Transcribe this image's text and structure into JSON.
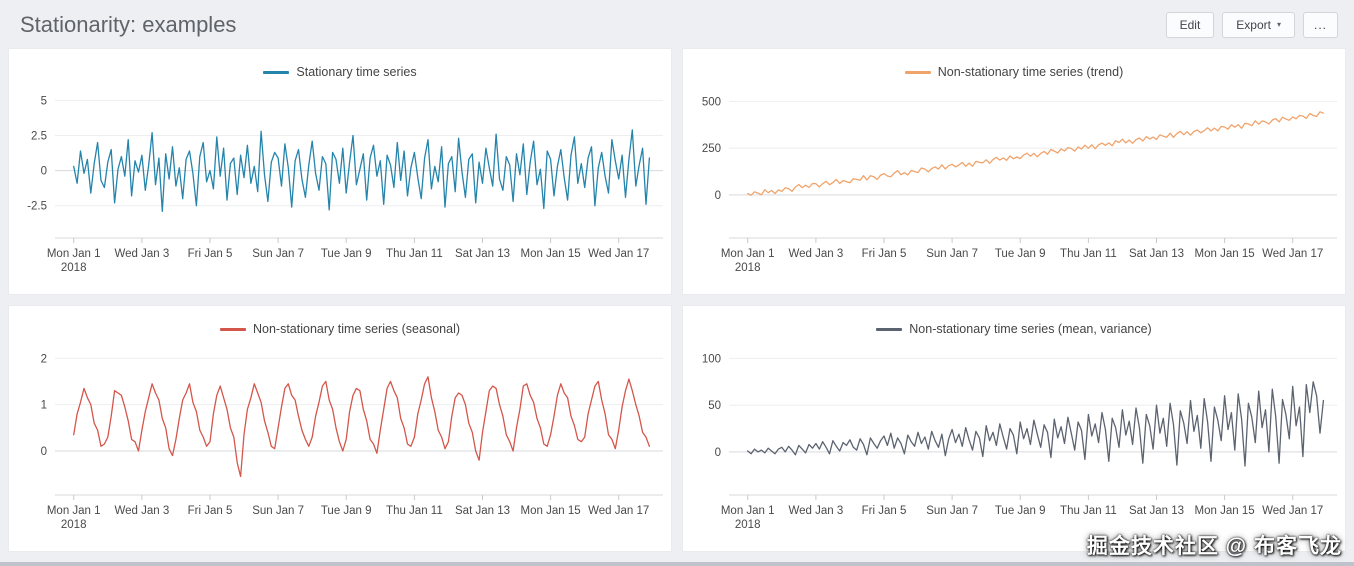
{
  "header": {
    "title": "Stationarity: examples",
    "buttons": {
      "edit": "Edit",
      "export": "Export",
      "more": "..."
    }
  },
  "icons": {
    "chevron_down": "▾"
  },
  "watermark": "掘金技术社区 @ 布客飞龙",
  "x_axis": {
    "day_range": [
      -0.55,
      17.3
    ],
    "points_per_day": 10,
    "ticks": [
      {
        "day": 0,
        "label": "Mon Jan 1",
        "sub": "2018"
      },
      {
        "day": 2,
        "label": "Wed Jan 3"
      },
      {
        "day": 4,
        "label": "Fri Jan 5"
      },
      {
        "day": 6,
        "label": "Sun Jan 7"
      },
      {
        "day": 8,
        "label": "Tue Jan 9"
      },
      {
        "day": 10,
        "label": "Thu Jan 11"
      },
      {
        "day": 12,
        "label": "Sat Jan 13"
      },
      {
        "day": 14,
        "label": "Mon Jan 15"
      },
      {
        "day": 16,
        "label": "Wed Jan 17"
      }
    ]
  },
  "chart_data": [
    {
      "type": "line",
      "title": "Stationary time series",
      "color": "#2484ab",
      "legend_position": "top-center",
      "grid": true,
      "xlabel": "",
      "ylabel": "",
      "y_ticks": [
        5,
        2.5,
        0,
        -2.5
      ],
      "ylim": [
        -4.8,
        5.6
      ],
      "values": [
        0.3,
        -0.9,
        1.4,
        -0.2,
        0.8,
        -1.6,
        0.5,
        2.0,
        -0.7,
        -1.2,
        0.6,
        1.5,
        -2.3,
        0.1,
        1.0,
        -0.4,
        2.2,
        -1.8,
        0.7,
        -0.1,
        1.1,
        -1.4,
        0.4,
        2.7,
        -1.0,
        0.9,
        -2.9,
        1.2,
        -0.6,
        1.7,
        -1.1,
        0.2,
        -2.0,
        0.8,
        1.4,
        -0.2,
        -2.5,
        1.0,
        2.0,
        -0.8,
        0.0,
        -1.3,
        2.4,
        -0.4,
        1.6,
        -2.1,
        0.5,
        0.9,
        -1.7,
        1.1,
        -0.5,
        1.8,
        -0.9,
        0.3,
        -1.5,
        2.8,
        -0.3,
        -2.2,
        0.6,
        1.3,
        0.9,
        -1.1,
        1.9,
        0.2,
        -2.6,
        0.7,
        1.5,
        -0.6,
        -1.9,
        0.4,
        2.1,
        -0.2,
        -1.4,
        1.0,
        0.5,
        -2.8,
        1.3,
        0.8,
        -0.9,
        1.6,
        -1.6,
        0.6,
        2.5,
        -1.0,
        0.1,
        1.2,
        -2.1,
        0.9,
        1.8,
        -0.4,
        0.7,
        -2.4,
        1.1,
        0.4,
        -1.2,
        2.0,
        -0.7,
        1.4,
        -1.8,
        0.2,
        1.3,
        -0.5,
        -2.0,
        0.9,
        2.2,
        -1.3,
        0.3,
        -0.8,
        1.7,
        -2.6,
        0.5,
        1.0,
        -1.5,
        2.3,
        -0.1,
        -1.9,
        0.8,
        1.2,
        -2.3,
        0.6,
        -0.9,
        1.6,
        0.2,
        -1.1,
        2.6,
        -0.6,
        -1.4,
        1.0,
        0.4,
        -2.2,
        1.2,
        -0.3,
        1.9,
        -1.7,
        0.6,
        2.1,
        -1.0,
        0.1,
        -2.7,
        1.4,
        0.8,
        -1.8,
        0.3,
        1.5,
        -0.5,
        -2.1,
        1.1,
        2.4,
        -0.9,
        0.5,
        -1.2,
        0.9,
        1.7,
        -2.5,
        0.2,
        1.3,
        -0.4,
        -1.6,
        2.2,
        0.7,
        -0.6,
        1.1,
        -1.9,
        0.8,
        2.9,
        -1.1,
        0.4,
        1.6,
        -2.4,
        0.9
      ]
    },
    {
      "type": "line",
      "title": "Non-stationary time series (trend)",
      "color": "#f0a46c",
      "legend_position": "top-center",
      "grid": true,
      "xlabel": "",
      "ylabel": "",
      "y_ticks": [
        500,
        250,
        0
      ],
      "ylim": [
        -230,
        550
      ],
      "values": [
        8,
        -2,
        17,
        10,
        1,
        28,
        12,
        24,
        8,
        27,
        19,
        38,
        34,
        19,
        42,
        56,
        39,
        52,
        40,
        61,
        60,
        43,
        60,
        73,
        55,
        66,
        83,
        61,
        77,
        71,
        65,
        87,
        83,
        79,
        103,
        80,
        103,
        97,
        83,
        106,
        114,
        101,
        97,
        116,
        130,
        108,
        119,
        107,
        131,
        125,
        120,
        144,
        138,
        123,
        141,
        150,
        138,
        161,
        139,
        156,
        164,
        150,
        160,
        174,
        153,
        170,
        153,
        179,
        174,
        172,
        188,
        169,
        189,
        201,
        186,
        198,
        185,
        208,
        193,
        203,
        194,
        213,
        223,
        207,
        222,
        204,
        222,
        232,
        217,
        243,
        234,
        224,
        246,
        235,
        253,
        248,
        234,
        256,
        246,
        266,
        249,
        268,
        247,
        268,
        277,
        265,
        278,
        263,
        290,
        280,
        298,
        278,
        293,
        276,
        295,
        304,
        288,
        311,
        299,
        309,
        297,
        321,
        314,
        308,
        330,
        308,
        328,
        340,
        322,
        338,
        319,
        339,
        347,
        332,
        344,
        359,
        342,
        357,
        342,
        366,
        363,
        351,
        375,
        362,
        376,
        356,
        383,
        379,
        370,
        396,
        378,
        395,
        390,
        379,
        400,
        408,
        390,
        415,
        406,
        399,
        417,
        407,
        425,
        421,
        409,
        435,
        425,
        419,
        444,
        437
      ]
    },
    {
      "type": "line",
      "title": "Non-stationary time series (seasonal)",
      "color": "#d4564b",
      "legend_position": "top-center",
      "grid": true,
      "xlabel": "",
      "ylabel": "",
      "y_ticks": [
        2,
        1,
        0
      ],
      "ylim": [
        -0.95,
        2.2
      ],
      "values": [
        0.35,
        0.8,
        1.05,
        1.35,
        1.15,
        1.0,
        0.6,
        0.45,
        0.1,
        0.15,
        0.3,
        0.75,
        1.3,
        1.25,
        1.2,
        0.95,
        0.65,
        0.25,
        0.2,
        0.0,
        0.45,
        0.85,
        1.15,
        1.45,
        1.25,
        1.1,
        0.7,
        0.5,
        0.05,
        -0.1,
        0.25,
        0.7,
        1.1,
        1.25,
        1.45,
        1.05,
        0.85,
        0.45,
        0.3,
        0.1,
        0.2,
        0.8,
        1.2,
        1.4,
        1.15,
        0.9,
        0.5,
        0.3,
        -0.25,
        -0.55,
        0.35,
        0.9,
        1.15,
        1.45,
        1.25,
        1.05,
        0.65,
        0.4,
        0.1,
        0.05,
        0.5,
        0.95,
        1.35,
        1.45,
        1.2,
        1.1,
        0.75,
        0.45,
        0.25,
        0.1,
        0.3,
        0.75,
        1.05,
        1.4,
        1.5,
        1.1,
        0.9,
        0.5,
        0.2,
        0.0,
        0.25,
        0.85,
        1.2,
        1.35,
        1.3,
        0.9,
        0.65,
        0.25,
        0.15,
        -0.05,
        0.45,
        0.9,
        1.35,
        1.5,
        1.3,
        1.15,
        0.7,
        0.5,
        0.15,
        0.1,
        0.3,
        0.8,
        1.1,
        1.45,
        1.6,
        1.15,
        0.85,
        0.45,
        0.3,
        0.05,
        0.2,
        0.75,
        1.15,
        1.25,
        1.2,
        1.0,
        0.6,
        0.4,
        0.0,
        -0.2,
        0.4,
        0.85,
        1.3,
        1.4,
        1.35,
        1.0,
        0.75,
        0.35,
        0.2,
        0.0,
        0.5,
        0.9,
        1.4,
        1.45,
        1.2,
        1.05,
        0.7,
        0.5,
        0.15,
        0.1,
        0.35,
        0.75,
        1.2,
        1.45,
        1.25,
        1.15,
        0.75,
        0.55,
        0.25,
        0.2,
        0.3,
        0.8,
        1.1,
        1.4,
        1.5,
        1.1,
        0.8,
        0.35,
        0.25,
        0.05,
        0.45,
        0.95,
        1.3,
        1.55,
        1.3,
        1.0,
        0.75,
        0.4,
        0.3,
        0.1
      ]
    },
    {
      "type": "line",
      "title": "Non-stationary time series (mean, variance)",
      "color": "#5c6370",
      "legend_position": "top-center",
      "grid": true,
      "xlabel": "",
      "ylabel": "",
      "y_ticks": [
        100,
        50,
        0
      ],
      "ylim": [
        -46,
        110
      ],
      "values": [
        1,
        -2,
        3,
        0,
        2,
        -1,
        4,
        1,
        -2,
        3,
        5,
        0,
        6,
        2,
        -3,
        7,
        3,
        -1,
        8,
        4,
        9,
        3,
        11,
        5,
        -2,
        12,
        6,
        1,
        10,
        7,
        13,
        5,
        2,
        14,
        8,
        -3,
        15,
        9,
        4,
        12,
        17,
        7,
        20,
        4,
        15,
        9,
        -2,
        18,
        11,
        6,
        21,
        9,
        16,
        3,
        22,
        12,
        5,
        19,
        -4,
        14,
        24,
        10,
        19,
        6,
        26,
        13,
        2,
        22,
        15,
        -5,
        28,
        12,
        21,
        7,
        30,
        16,
        3,
        25,
        18,
        -2,
        32,
        14,
        25,
        8,
        34,
        19,
        5,
        29,
        21,
        -6,
        35,
        15,
        27,
        9,
        37,
        20,
        2,
        32,
        23,
        -8,
        40,
        17,
        30,
        10,
        42,
        24,
        -10,
        36,
        26,
        5,
        45,
        18,
        33,
        8,
        47,
        26,
        -12,
        40,
        28,
        3,
        50,
        20,
        36,
        6,
        52,
        29,
        -14,
        44,
        31,
        9,
        55,
        22,
        39,
        4,
        57,
        32,
        -10,
        48,
        34,
        12,
        60,
        24,
        42,
        2,
        62,
        35,
        -15,
        52,
        37,
        10,
        65,
        26,
        45,
        0,
        67,
        38,
        -12,
        56,
        40,
        14,
        70,
        28,
        48,
        -5,
        72,
        42,
        75,
        60,
        20,
        55
      ]
    }
  ]
}
